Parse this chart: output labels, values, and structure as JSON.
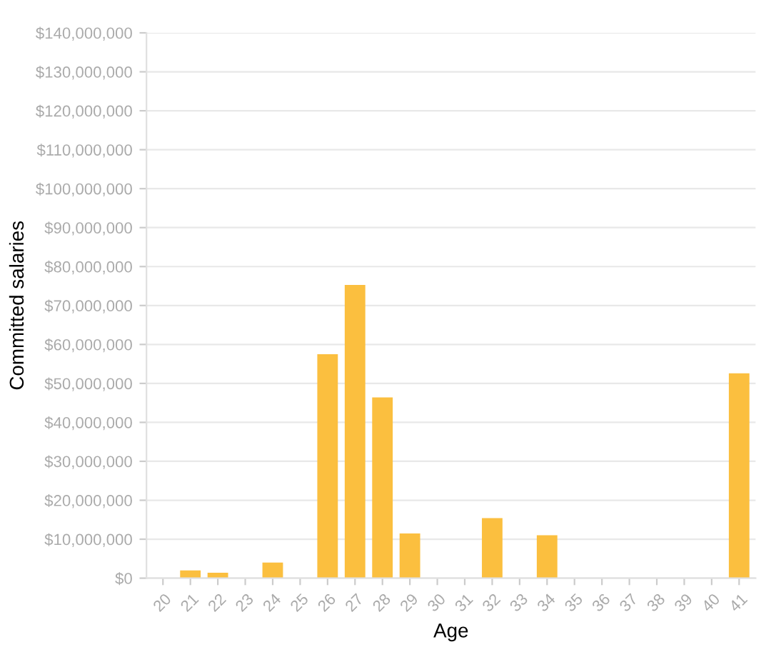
{
  "chart_data": {
    "type": "bar",
    "xlabel": "Age",
    "ylabel": "Committed salaries",
    "categories": [
      "20",
      "21",
      "22",
      "23",
      "24",
      "25",
      "26",
      "27",
      "28",
      "29",
      "30",
      "31",
      "32",
      "33",
      "34",
      "35",
      "36",
      "37",
      "38",
      "39",
      "40",
      "41"
    ],
    "values": [
      0,
      2000000,
      1400000,
      0,
      4000000,
      0,
      57500000,
      75300000,
      46400000,
      11500000,
      0,
      0,
      15400000,
      0,
      11000000,
      0,
      0,
      0,
      0,
      0,
      0,
      52600000
    ],
    "color": "#fbbf3f",
    "ylim": [
      0,
      140000000
    ],
    "yticks": [
      {
        "value": 0,
        "label": "$0"
      },
      {
        "value": 10000000,
        "label": "$10,000,000"
      },
      {
        "value": 20000000,
        "label": "$20,000,000"
      },
      {
        "value": 30000000,
        "label": "$30,000,000"
      },
      {
        "value": 40000000,
        "label": "$40,000,000"
      },
      {
        "value": 50000000,
        "label": "$50,000,000"
      },
      {
        "value": 60000000,
        "label": "$60,000,000"
      },
      {
        "value": 70000000,
        "label": "$70,000,000"
      },
      {
        "value": 80000000,
        "label": "$80,000,000"
      },
      {
        "value": 90000000,
        "label": "$90,000,000"
      },
      {
        "value": 100000000,
        "label": "$100,000,000"
      },
      {
        "value": 110000000,
        "label": "$110,000,000"
      },
      {
        "value": 120000000,
        "label": "$120,000,000"
      },
      {
        "value": 130000000,
        "label": "$130,000,000"
      },
      {
        "value": 140000000,
        "label": "$140,000,000"
      }
    ],
    "grid": "y"
  }
}
